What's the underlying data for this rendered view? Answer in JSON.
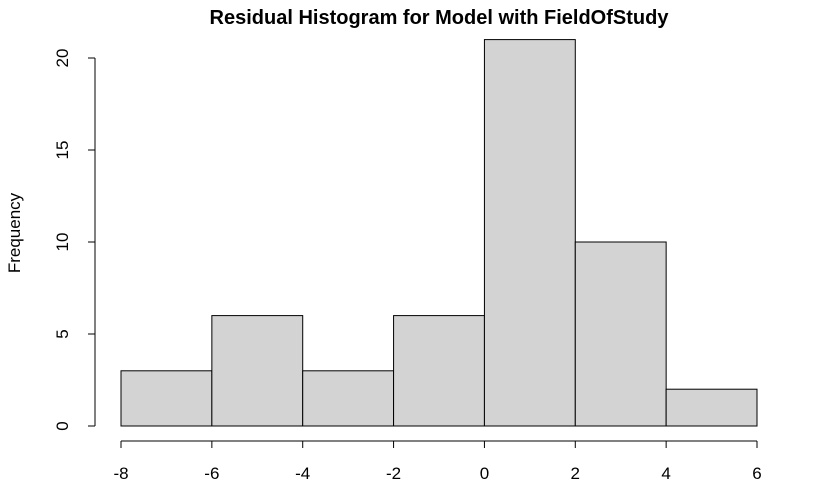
{
  "chart_data": {
    "type": "bar",
    "title": "Residual Histogram for Model with FieldOfStudy",
    "xlabel": "",
    "ylabel": "Frequency",
    "bins": [
      {
        "start": -8,
        "end": -6,
        "count": 3
      },
      {
        "start": -6,
        "end": -4,
        "count": 6
      },
      {
        "start": -4,
        "end": -2,
        "count": 3
      },
      {
        "start": -2,
        "end": 0,
        "count": 6
      },
      {
        "start": 0,
        "end": 2,
        "count": 21
      },
      {
        "start": 2,
        "end": 4,
        "count": 10
      },
      {
        "start": 4,
        "end": 6,
        "count": 2
      }
    ],
    "xlim": [
      -8,
      6
    ],
    "ylim": [
      0,
      21
    ],
    "x_ticks": [
      "-8",
      "-6",
      "-4",
      "-2",
      "0",
      "2",
      "4",
      "6"
    ],
    "y_ticks": [
      "0",
      "5",
      "10",
      "15",
      "20"
    ],
    "bar_color": "#d3d3d3",
    "grid": false
  }
}
